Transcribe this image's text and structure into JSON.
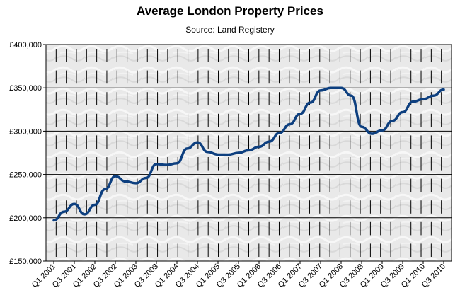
{
  "chart_data": {
    "type": "line",
    "title": "Average London Property Prices",
    "subtitle": "Source: Land Registery",
    "xlabel": "",
    "ylabel": "",
    "ylim": [
      150000,
      400000
    ],
    "yticks": [
      "£150,000",
      "£200,000",
      "£250,000",
      "£300,000",
      "£350,000",
      "£400,000"
    ],
    "ytick_values": [
      150000,
      200000,
      250000,
      300000,
      350000,
      400000
    ],
    "categories": [
      "Q1 2001",
      "Q2 2001",
      "Q3 2001",
      "Q4 2001",
      "Q1 2002",
      "Q2 2002",
      "Q3 2002",
      "Q4 2002",
      "Q1 2003",
      "Q2 2003",
      "Q3 2003",
      "Q4 2003",
      "Q1 2004",
      "Q2 2004",
      "Q3 2004",
      "Q4 2004",
      "Q1 2005",
      "Q2 2005",
      "Q3 2005",
      "Q4 2005",
      "Q1 2006",
      "Q2 2006",
      "Q3 2006",
      "Q4 2006",
      "Q1 2007",
      "Q2 2007",
      "Q3 2007",
      "Q4 2007",
      "Q1 2008",
      "Q2 2008",
      "Q3 2008",
      "Q4 2008",
      "Q1 2009",
      "Q2 2009",
      "Q3 2009",
      "Q4 2009",
      "Q1 2010",
      "Q2 2010",
      "Q3 2010"
    ],
    "x_tick_labels": [
      "Q1 2001",
      "Q3 2001",
      "Q1 2002",
      "Q3 2002",
      "Q1 2003",
      "Q3 2003",
      "Q1 2004",
      "Q3 2004",
      "Q1 2005",
      "Q3 2005",
      "Q1 2006",
      "Q3 2006",
      "Q1 2007",
      "Q3 2007",
      "Q1 2008",
      "Q3 2008",
      "Q1 2009",
      "Q3 2009",
      "Q1 2010",
      "Q3 2010"
    ],
    "series": [
      {
        "values": [
          197000,
          207000,
          216000,
          204000,
          215000,
          233000,
          248000,
          242000,
          240000,
          246000,
          262000,
          261000,
          263000,
          280000,
          287000,
          276000,
          273000,
          273000,
          275000,
          278000,
          282000,
          288000,
          298000,
          308000,
          320000,
          333000,
          347000,
          350000,
          350000,
          341000,
          305000,
          297000,
          301000,
          312000,
          322000,
          334000,
          337000,
          341000,
          348000
        ],
        "color": "#0d3f7f"
      }
    ],
    "grid": true,
    "legend": "none"
  }
}
